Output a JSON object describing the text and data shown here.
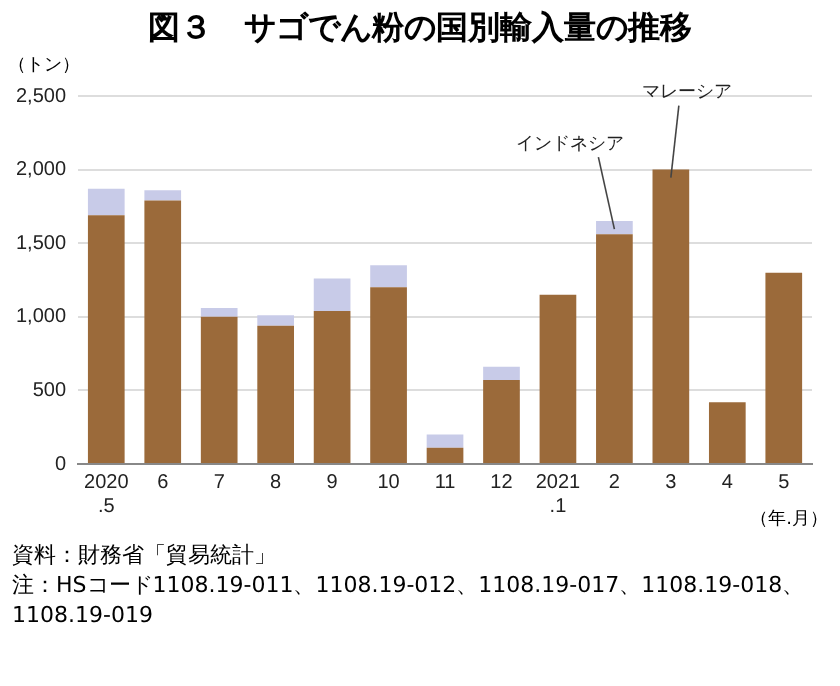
{
  "chart_data": {
    "type": "bar",
    "title": "図３　サゴでん粉の国別輸入量の推移",
    "ylabel": "（トン）",
    "xlabel": "（年.月）",
    "categories": [
      "2020\n.5",
      "6",
      "7",
      "8",
      "9",
      "10",
      "11",
      "12",
      "2021\n.1",
      "2",
      "3",
      "4",
      "5"
    ],
    "stacked": true,
    "series": [
      {
        "name": "マレーシア",
        "color": "#9b6a3a",
        "values": [
          1690,
          1790,
          1000,
          940,
          1040,
          1200,
          110,
          570,
          1150,
          1560,
          2000,
          420,
          1300
        ]
      },
      {
        "name": "インドネシア",
        "color": "#c8cbe8",
        "values": [
          180,
          70,
          60,
          70,
          220,
          150,
          90,
          90,
          0,
          90,
          0,
          0,
          0
        ]
      }
    ],
    "ylim": [
      0,
      2500
    ],
    "yticks": [
      {
        "value": 0,
        "label": "0"
      },
      {
        "value": 500,
        "label": "500"
      },
      {
        "value": 1000,
        "label": "1,000"
      },
      {
        "value": 1500,
        "label": "1,500"
      },
      {
        "value": 2000,
        "label": "2,000"
      },
      {
        "value": 2500,
        "label": "2,500"
      }
    ],
    "grid": "y",
    "legend": false,
    "annotations": [
      "資料：財務省「貿易統計」",
      "注：HSコード1108.19-011、1108.19-012、1108.19-017、1108.19-018、1108.19-019"
    ]
  }
}
